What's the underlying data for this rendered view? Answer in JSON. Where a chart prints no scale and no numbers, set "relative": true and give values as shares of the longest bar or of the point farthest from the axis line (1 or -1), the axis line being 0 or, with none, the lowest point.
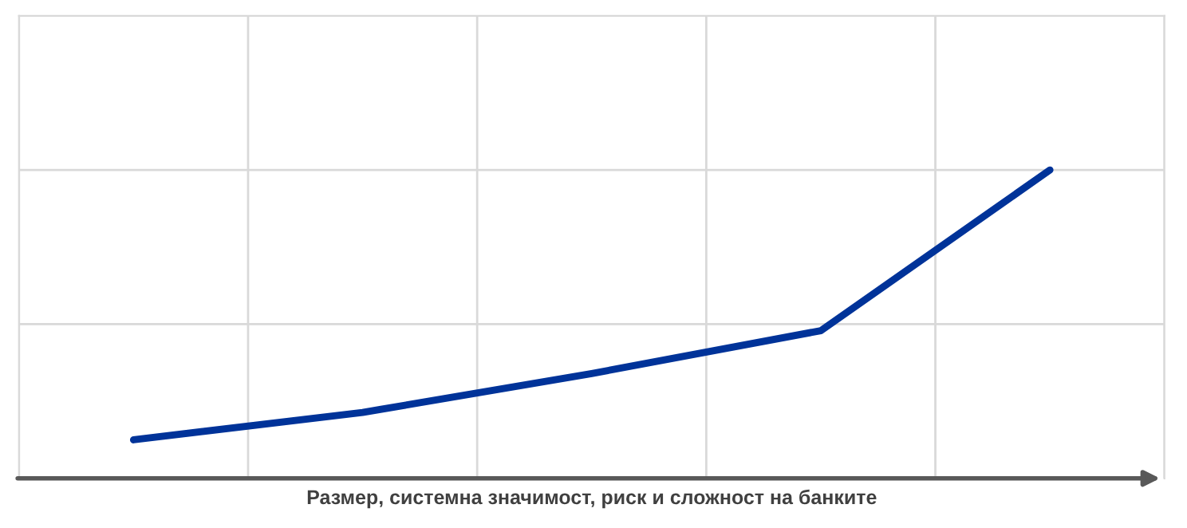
{
  "chart_data": {
    "type": "line",
    "relative": true,
    "xlabel": "Размер, системна значимост, риск и сложност на банките",
    "categories": [
      null,
      null,
      null,
      null,
      null
    ],
    "series": [
      {
        "color": "#003399",
        "values": [
          0.125,
          0.214,
          0.34,
          0.479,
          1
        ]
      }
    ],
    "grid": true,
    "marker": "none",
    "line_style": "solid",
    "tick_labels": false
  }
}
